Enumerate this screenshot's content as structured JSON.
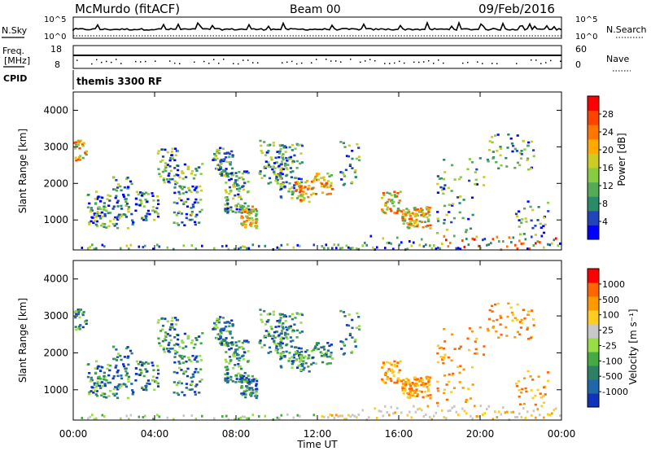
{
  "header": {
    "station": "McMurdo (fitACF)",
    "beam": "Beam 00",
    "date": "09/Feb/2016"
  },
  "noise_panel": {
    "left_label": "N.Sky",
    "right_label": "N.Search",
    "tick_top": "10^5",
    "tick_bottom": "10^0"
  },
  "freq_panel": {
    "left_label_1": "Freq.",
    "left_label_2": "[MHz]",
    "right_label": "Nave",
    "left_ticks": [
      "18",
      "8"
    ],
    "right_ticks": [
      "60",
      "0"
    ]
  },
  "cpid": {
    "label": "CPID",
    "value": "themis 3300 RF"
  },
  "x_axis": {
    "label": "Time UT",
    "ticks": [
      "00:00",
      "04:00",
      "08:00",
      "12:00",
      "16:00",
      "20:00",
      "00:00"
    ]
  },
  "chart_data": [
    {
      "type": "heatmap",
      "name": "power",
      "ylabel": "Slant Range [km]",
      "xlabel": "",
      "xlim": [
        0,
        24
      ],
      "ylim": [
        180,
        4500
      ],
      "yticks": [
        "1000",
        "2000",
        "3000",
        "4000"
      ],
      "colorbar": {
        "label": "Power [dB]",
        "ticks": [
          "4",
          "8",
          "12",
          "16",
          "20",
          "24",
          "28"
        ],
        "colors": [
          "#0000ff",
          "#2244bb",
          "#2a8a6a",
          "#55aa55",
          "#88cc44",
          "#cccc22",
          "#ffaa00",
          "#ff7700",
          "#ff4400",
          "#ff0000"
        ]
      }
    },
    {
      "type": "heatmap",
      "name": "velocity",
      "ylabel": "Slant Range [km]",
      "xlabel": "Time UT",
      "xlim": [
        0,
        24
      ],
      "ylim": [
        180,
        4500
      ],
      "yticks": [
        "1000",
        "2000",
        "3000",
        "4000"
      ],
      "colorbar": {
        "label": "Velocity [m s⁻¹]",
        "ticks": [
          "1000",
          "500",
          "100",
          "25",
          "-25",
          "-100",
          "-500",
          "-1000"
        ],
        "colors": [
          "#1133bb",
          "#2266aa",
          "#2f7f66",
          "#44aa44",
          "#99dd44",
          "#c8c8c8",
          "#ffcc22",
          "#ff9900",
          "#ff6600",
          "#ff0000"
        ]
      }
    }
  ]
}
